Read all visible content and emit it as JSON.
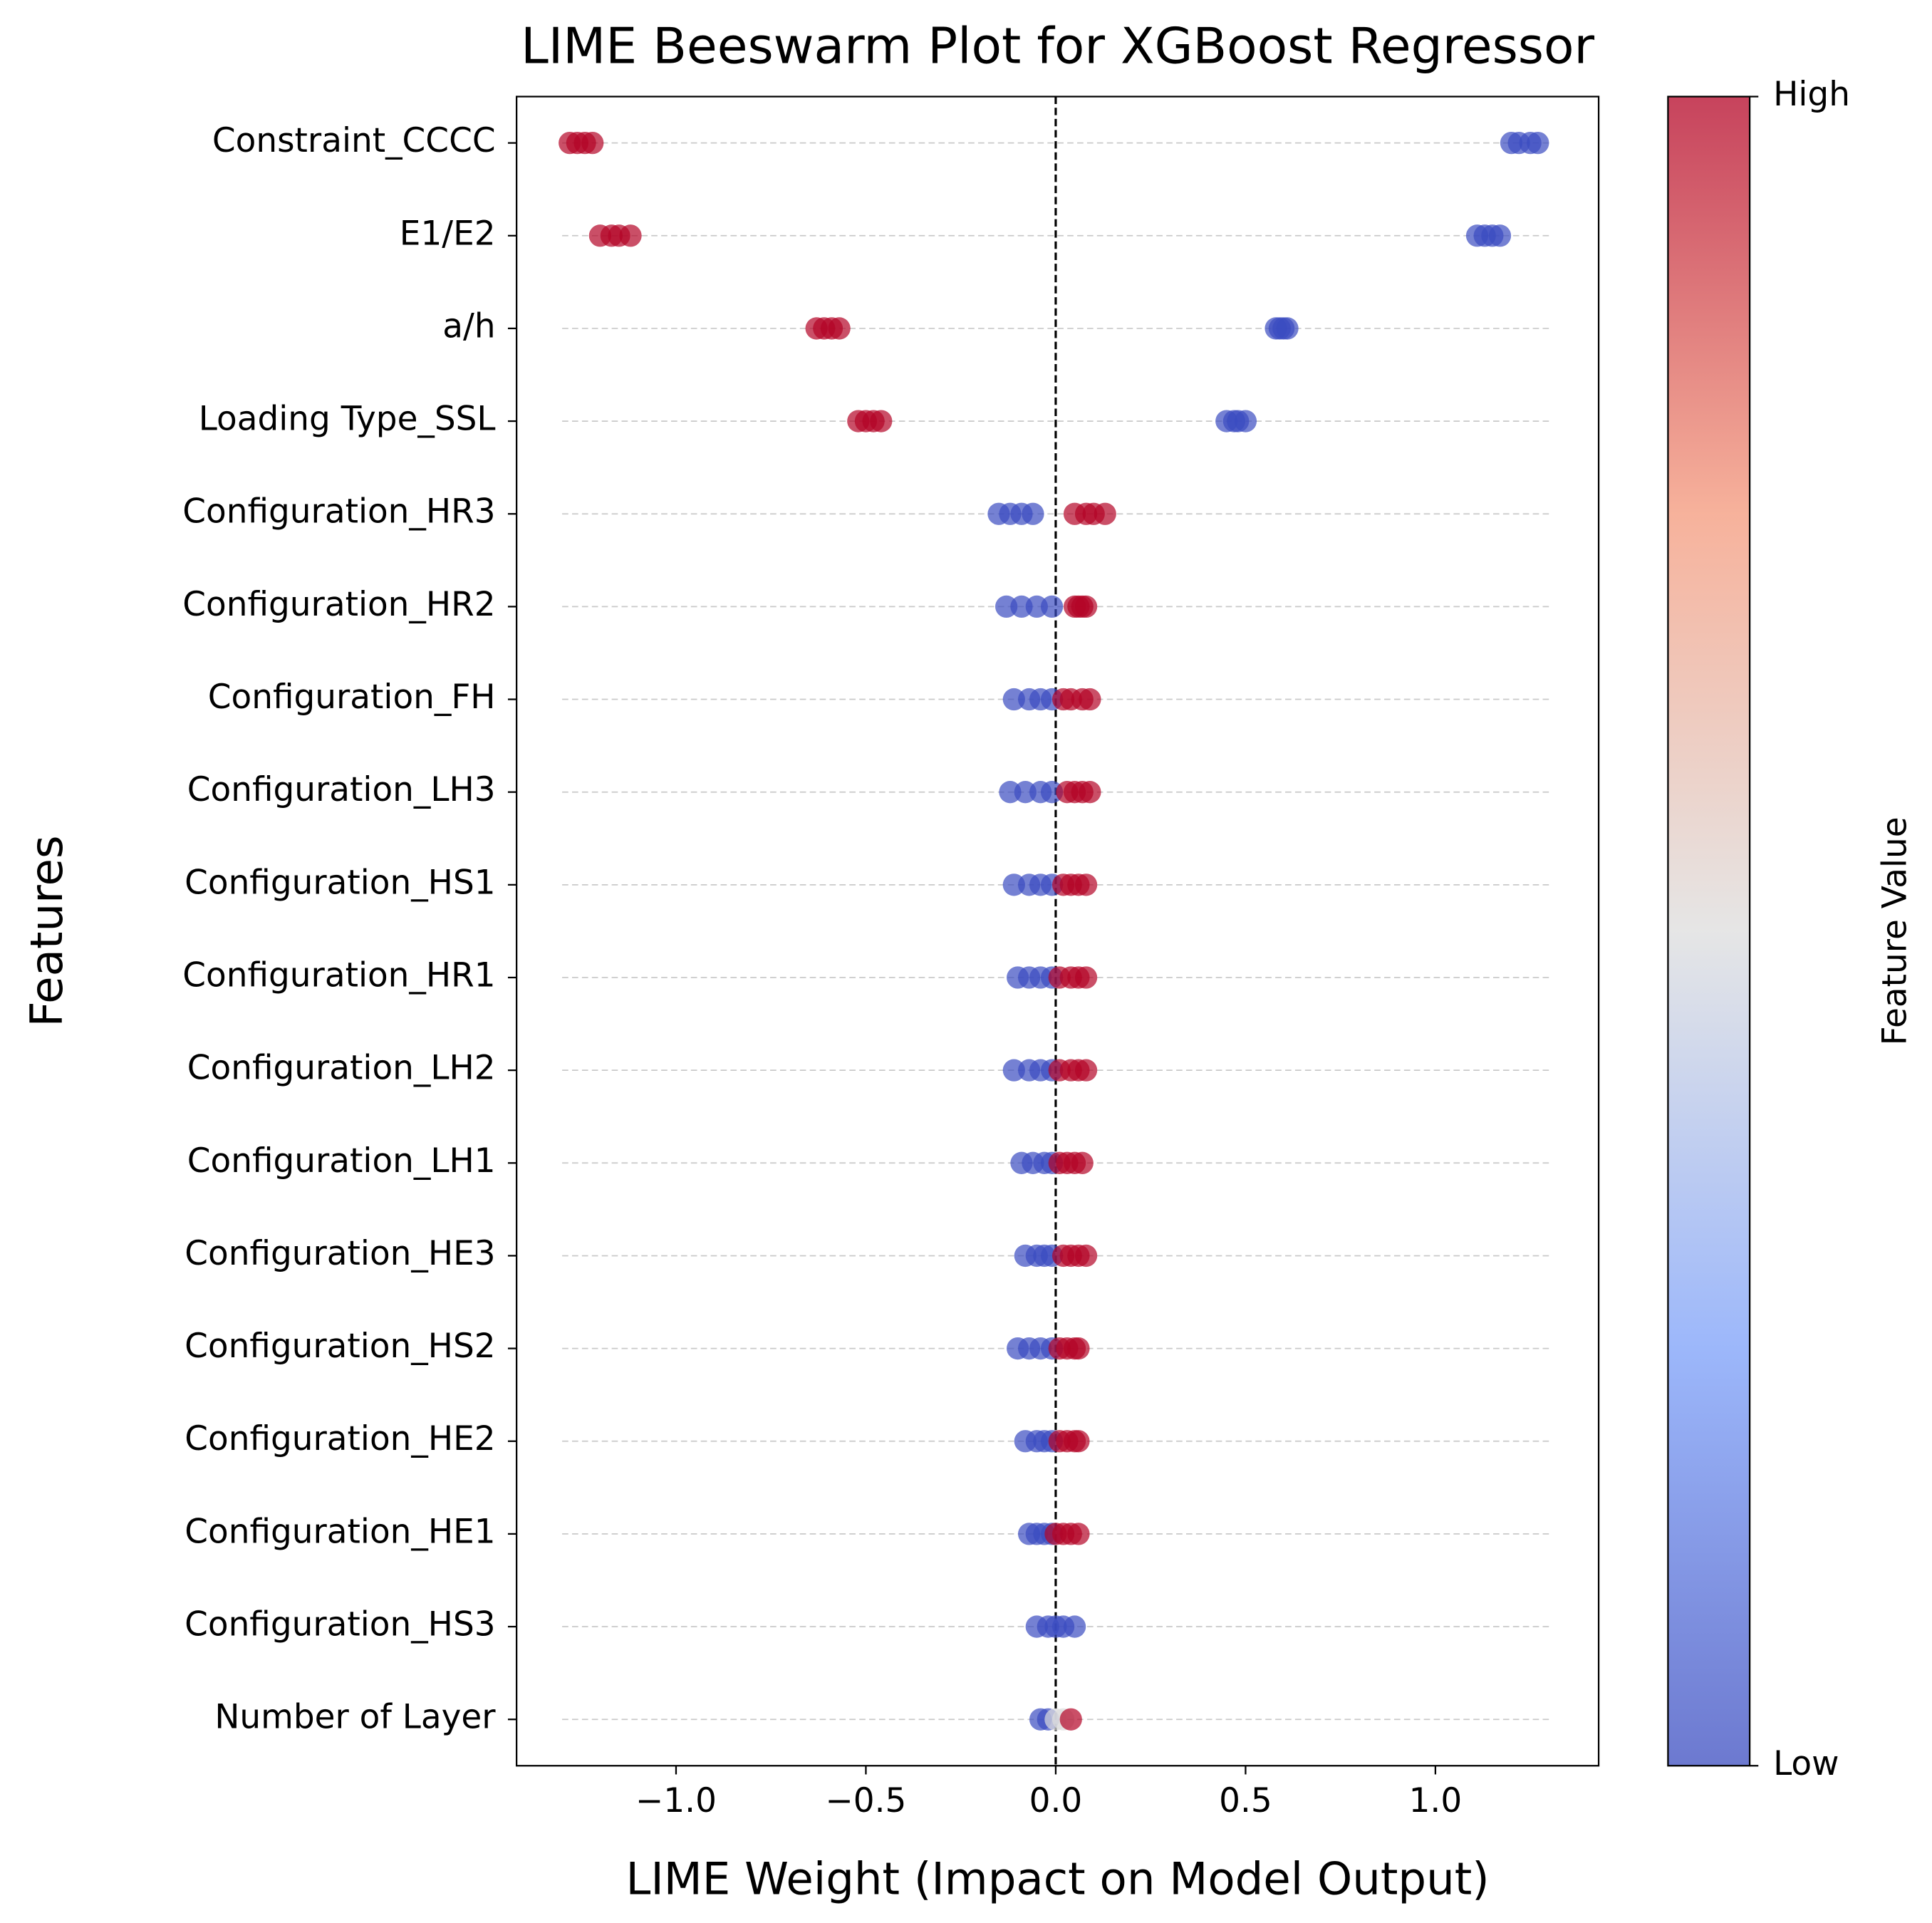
{
  "chart_data": {
    "type": "beeswarm",
    "title": "LIME Beeswarm Plot for XGBoost Regressor",
    "x_label": "LIME Weight (Impact on Model Output)",
    "y_label": "Features",
    "colorbar_label": "Feature Value",
    "clim": [
      0,
      1
    ],
    "cticks": [
      {
        "value": 0,
        "label": "Low"
      },
      {
        "value": 1,
        "label": "High"
      }
    ],
    "xlim": [
      -1.42,
      1.43
    ],
    "xticks": [
      {
        "value": -1.0,
        "label": "−1.0"
      },
      {
        "value": -0.5,
        "label": "−0.5"
      },
      {
        "value": 0,
        "label": "0.0"
      },
      {
        "value": 0.5,
        "label": "0.5"
      },
      {
        "value": 1.0,
        "label": "1.0"
      }
    ],
    "rows": [
      {
        "name": "Constraint_CCCC",
        "x": [
          -1.28,
          -1.26,
          -1.24,
          -1.22,
          1.2,
          1.22,
          1.25,
          1.27
        ],
        "c": [
          1,
          1,
          1,
          1,
          0,
          0,
          0,
          0
        ]
      },
      {
        "name": "E1/E2",
        "x": [
          -1.2,
          -1.17,
          -1.15,
          -1.12,
          1.11,
          1.13,
          1.15,
          1.17
        ],
        "c": [
          1,
          1,
          1,
          1,
          0,
          0,
          0,
          0
        ]
      },
      {
        "name": "a/h",
        "x": [
          -0.63,
          -0.61,
          -0.59,
          -0.57,
          0.58,
          0.59,
          0.6,
          0.61
        ],
        "c": [
          1,
          1,
          1,
          1,
          0,
          0,
          0,
          0
        ]
      },
      {
        "name": "Loading Type_SSL",
        "x": [
          -0.52,
          -0.5,
          -0.48,
          -0.46,
          0.45,
          0.47,
          0.48,
          0.5
        ],
        "c": [
          1,
          1,
          1,
          1,
          0,
          0,
          0,
          0
        ]
      },
      {
        "name": "Configuration_HR3",
        "x": [
          -0.15,
          -0.12,
          -0.09,
          -0.06,
          0.05,
          0.08,
          0.1,
          0.13
        ],
        "c": [
          0,
          0,
          0,
          0,
          1,
          1,
          1,
          1
        ]
      },
      {
        "name": "Configuration_HR2",
        "x": [
          -0.13,
          -0.09,
          -0.05,
          -0.01,
          0.05,
          0.06,
          0.07,
          0.08
        ],
        "c": [
          0,
          0,
          0,
          0,
          1,
          1,
          1,
          1
        ]
      },
      {
        "name": "Configuration_FH",
        "x": [
          -0.11,
          -0.07,
          -0.04,
          -0.01,
          0.02,
          0.04,
          0.07,
          0.09
        ],
        "c": [
          0,
          0,
          0,
          0,
          1,
          1,
          1,
          1
        ]
      },
      {
        "name": "Configuration_LH3",
        "x": [
          -0.12,
          -0.08,
          -0.04,
          -0.01,
          0.03,
          0.05,
          0.07,
          0.09
        ],
        "c": [
          0,
          0,
          0,
          0,
          1,
          1,
          1,
          1
        ]
      },
      {
        "name": "Configuration_HS1",
        "x": [
          -0.11,
          -0.07,
          -0.04,
          -0.01,
          0.02,
          0.04,
          0.06,
          0.08
        ],
        "c": [
          0,
          0,
          0,
          0,
          1,
          1,
          1,
          1
        ]
      },
      {
        "name": "Configuration_HR1",
        "x": [
          -0.1,
          -0.07,
          -0.04,
          -0.01,
          0.01,
          0.04,
          0.06,
          0.08
        ],
        "c": [
          0,
          0,
          0,
          0,
          1,
          1,
          1,
          1
        ]
      },
      {
        "name": "Configuration_LH2",
        "x": [
          -0.11,
          -0.07,
          -0.04,
          -0.01,
          0.01,
          0.04,
          0.06,
          0.08
        ],
        "c": [
          0,
          0,
          0,
          0,
          1,
          1,
          1,
          1
        ]
      },
      {
        "name": "Configuration_LH1",
        "x": [
          -0.09,
          -0.06,
          -0.03,
          -0.01,
          0.01,
          0.03,
          0.05,
          0.07
        ],
        "c": [
          0,
          0,
          0,
          0,
          1,
          1,
          1,
          1
        ]
      },
      {
        "name": "Configuration_HE3",
        "x": [
          -0.08,
          -0.05,
          -0.03,
          -0.01,
          0.02,
          0.04,
          0.06,
          0.08
        ],
        "c": [
          0,
          0,
          0,
          0,
          1,
          1,
          1,
          1
        ]
      },
      {
        "name": "Configuration_HS2",
        "x": [
          -0.1,
          -0.07,
          -0.04,
          -0.01,
          0.01,
          0.03,
          0.05,
          0.06
        ],
        "c": [
          0,
          0,
          0,
          0,
          1,
          1,
          1,
          1
        ]
      },
      {
        "name": "Configuration_HE2",
        "x": [
          -0.08,
          -0.05,
          -0.03,
          -0.01,
          0.01,
          0.03,
          0.05,
          0.06
        ],
        "c": [
          0,
          0,
          0,
          0,
          1,
          1,
          1,
          1
        ]
      },
      {
        "name": "Configuration_HE1",
        "x": [
          -0.07,
          -0.05,
          -0.03,
          -0.01,
          0.0,
          0.02,
          0.04,
          0.06
        ],
        "c": [
          0,
          0,
          0,
          0,
          1,
          1,
          1,
          1
        ]
      },
      {
        "name": "Configuration_HS3",
        "x": [
          -0.05,
          -0.02,
          0.0,
          0.02,
          0.05
        ],
        "c": [
          0,
          0,
          0,
          0,
          0
        ]
      },
      {
        "name": "Number of Layer",
        "x": [
          -0.04,
          -0.02,
          0.0,
          0.02,
          0.04
        ],
        "c": [
          0,
          0,
          0.5,
          0.5,
          1
        ]
      }
    ]
  }
}
